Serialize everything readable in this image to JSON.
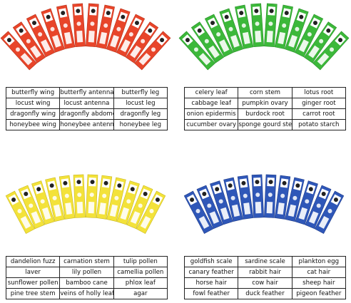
{
  "panels": [
    {
      "rows": [
        [
          "butterfly wing",
          "butterfly antenna",
          "butterfly leg"
        ],
        [
          "locust wing",
          "locust antenna",
          "locust leg"
        ],
        [
          "dragonfly wing",
          "dragonfly abdomen",
          "dragonfly leg"
        ],
        [
          "honeybee wing",
          "honeybee antenna",
          "honeybee leg"
        ]
      ]
    },
    {
      "rows": [
        [
          "celery leaf",
          "corn stem",
          "lotus root"
        ],
        [
          "cabbage leaf",
          "pumpkin ovary",
          "ginger root"
        ],
        [
          "onion epidermis",
          "burdock root",
          "carrot root"
        ],
        [
          "cucumber ovary",
          "sponge gourd stem",
          "potato starch"
        ]
      ]
    },
    {
      "rows": [
        [
          "dandelion fuzz",
          "carnation stem",
          "tulip pollen"
        ],
        [
          "laver",
          "lily pollen",
          "camellia pollen"
        ],
        [
          "sunflower pollen",
          "bamboo cane",
          "phlox leaf"
        ],
        [
          "pine tree stem",
          "veins of holly leaf",
          "agar"
        ]
      ]
    },
    {
      "rows": [
        [
          "goldfish scale",
          "sardine scale",
          "plankton egg"
        ],
        [
          "canary feather",
          "rabbit hair",
          "cat hair"
        ],
        [
          "horse hair",
          "cow hair",
          "sheep hair"
        ],
        [
          "fowl feather",
          "duck feather",
          "pigeon feather"
        ]
      ]
    }
  ]
}
